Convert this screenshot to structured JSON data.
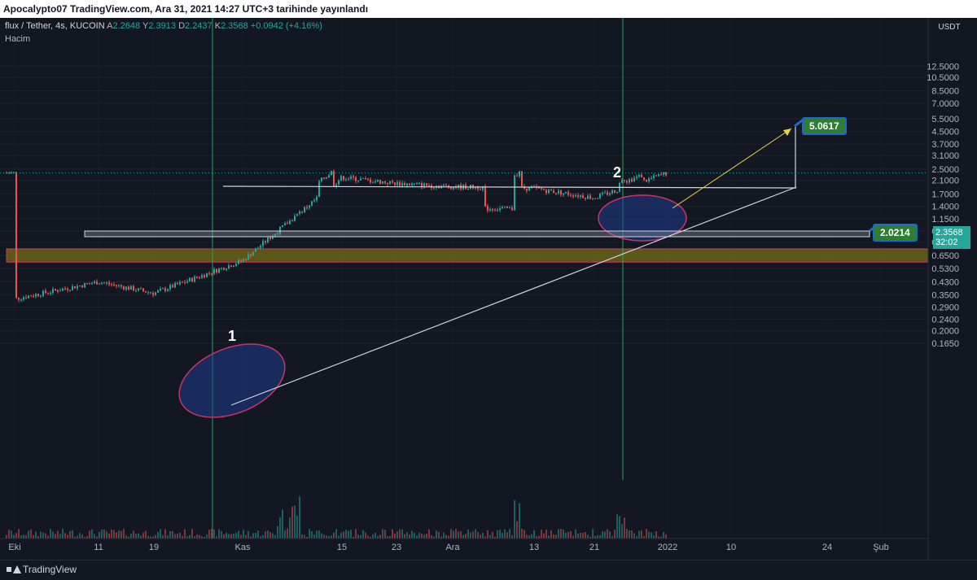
{
  "header": {
    "text": "Apocalypto07 TradingView.com, Ara 31, 2021 14:27 UTC+3 tarihinde yayınlandı"
  },
  "legend": {
    "symbol": "flux / Tether, 4s, KUCOIN",
    "a_label": "A",
    "a_value": "2.2648",
    "y_label": "Y",
    "y_value": "2.3913",
    "d_label": "D",
    "d_value": "2.2437",
    "k_label": "K",
    "k_value": "2.3568",
    "change": "+0.0942 (+4.16%)",
    "volume_label": "Hacim"
  },
  "colors": {
    "background": "#131722",
    "up": "#26a69a",
    "down": "#ef5350",
    "zone": "#b5a60f",
    "ellipse": "#1e3c8c",
    "ellipse_border": "#d0306a",
    "target_tag": "#2e7d32",
    "tag_border": "#1e66d0"
  },
  "chart_data": {
    "type": "candlestick",
    "axis_unit": "USDT",
    "y_scale": "log",
    "ylim": [
      0.14,
      13.5
    ],
    "price_ticks": [
      "12.5000",
      "10.5000",
      "8.5000",
      "7.0000",
      "5.5000",
      "4.5000",
      "3.7000",
      "3.1000",
      "2.5000",
      "2.1000",
      "1.7000",
      "1.4000",
      "1.1500",
      "0.9500",
      "0.8000",
      "0.6500",
      "0.5300",
      "0.4300",
      "0.3500",
      "0.2900",
      "0.2400",
      "0.2000",
      "0.1650"
    ],
    "x_ticks": [
      "Eki",
      "11",
      "19",
      "Kas",
      "15",
      "23",
      "Ara",
      "13",
      "21",
      "2022",
      "10",
      "24",
      "Şub"
    ],
    "last_price": "2.3568",
    "countdown": "32:02",
    "close_path": [
      [
        "Eki",
        0.33
      ],
      [
        "11",
        0.43
      ],
      [
        "19",
        0.36
      ],
      [
        "Kas",
        0.6
      ],
      [
        "15",
        2.2
      ],
      [
        "23",
        2.0
      ],
      [
        "Ara",
        1.9
      ],
      [
        "13",
        1.85
      ],
      [
        "21",
        1.6
      ],
      [
        "2022",
        2.36
      ]
    ],
    "annotations": {
      "label_1": "1",
      "label_2": "2",
      "target": "5.0617",
      "support": "2.0214"
    }
  }
}
